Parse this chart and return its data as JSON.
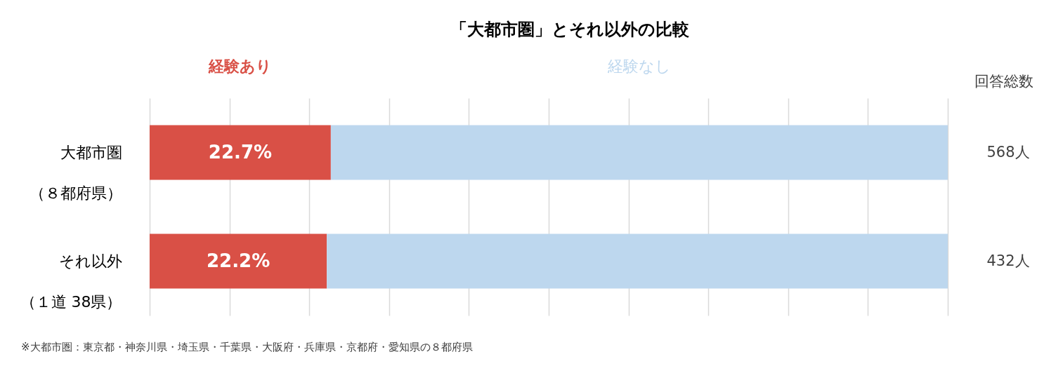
{
  "chart_data": {
    "type": "bar",
    "orientation": "horizontal",
    "stacked": true,
    "title": "「大都市圏」とそれ以外の比較",
    "categories": [
      "大都市圏（８都府県）",
      "それ以外（１道 38県）"
    ],
    "series": [
      {
        "name": "経験あり",
        "color": "#d95046",
        "values": [
          22.7,
          22.2
        ],
        "value_labels": [
          "22.7%",
          "22.2%"
        ]
      },
      {
        "name": "経験なし",
        "color": "#bdd7ee",
        "values": [
          77.3,
          77.8
        ]
      }
    ],
    "xlim": [
      0,
      100
    ],
    "xticks": [
      {
        "value": 0,
        "label": null
      },
      {
        "value": 10,
        "label": null
      },
      {
        "value": 20,
        "label": null
      },
      {
        "value": 30,
        "label": null
      },
      {
        "value": 40,
        "label": null
      },
      {
        "value": 50,
        "label": null
      },
      {
        "value": 60,
        "label": null
      },
      {
        "value": 70,
        "label": null
      },
      {
        "value": 80,
        "label": null
      },
      {
        "value": 90,
        "label": null
      },
      {
        "value": 100,
        "label": null
      }
    ],
    "grid": "x",
    "legend": false,
    "annotations": [
      "回答総数",
      "568人",
      "432人",
      "※大都市圏：東京都・神奈川県・埼玉県・千葉県・大阪府・兵庫県・京都府・愛知県の８都府県"
    ]
  }
}
